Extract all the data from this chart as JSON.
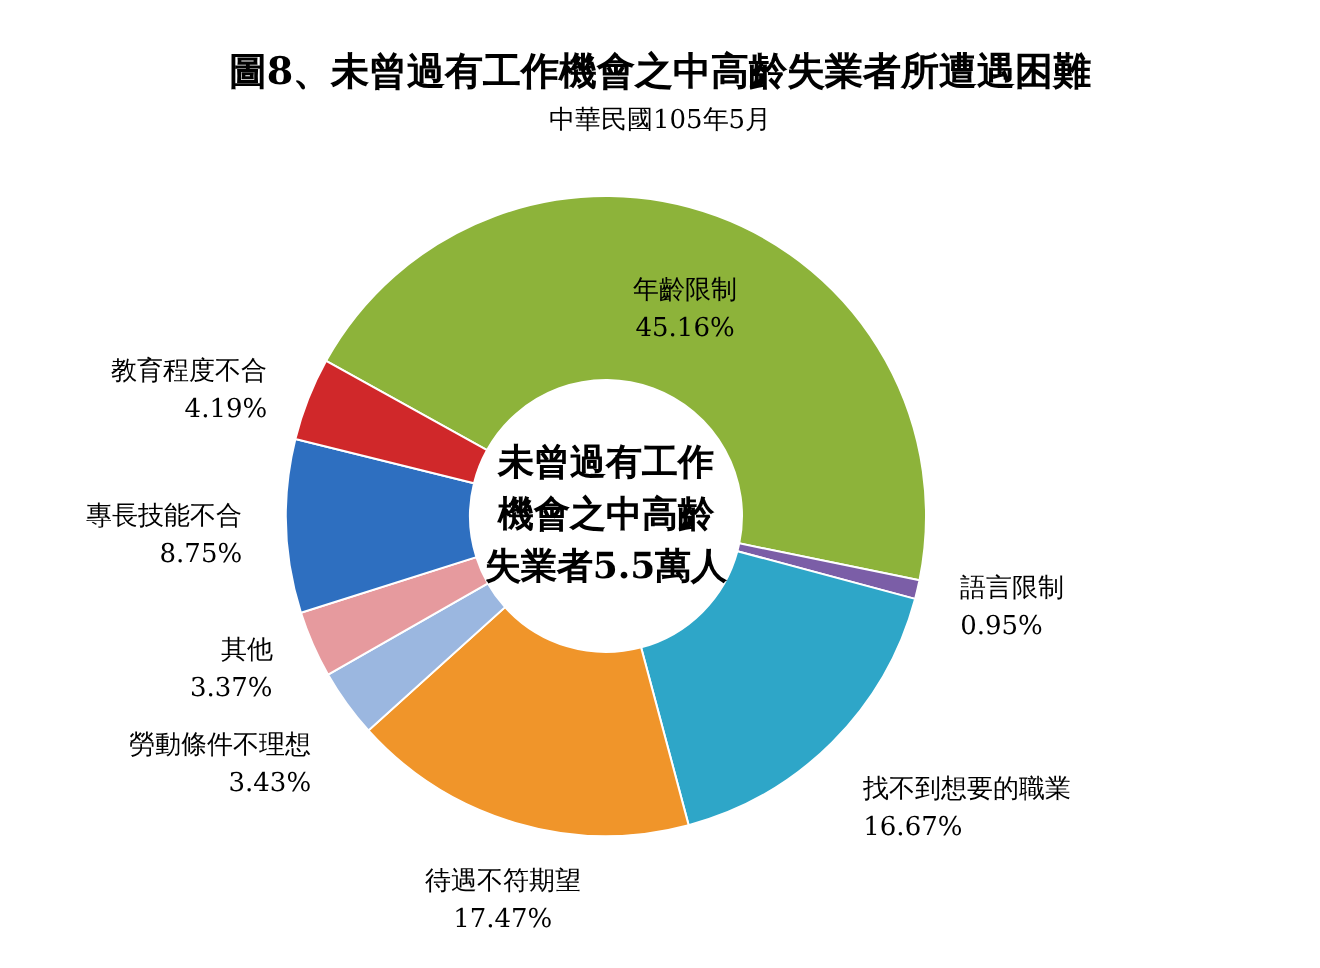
{
  "chart_data": {
    "type": "donut",
    "title": "圖8、未曾過有工作機會之中高齡失業者所遭遇困難",
    "subtitle": "中華民國105年5月",
    "categories": [
      "年齡限制",
      "語言限制",
      "找不到想要的職業",
      "待遇不符期望",
      "勞動條件不理想",
      "其他",
      "專長技能不合",
      "教育程度不合"
    ],
    "values": [
      45.16,
      0.95,
      16.67,
      17.47,
      3.43,
      3.37,
      8.75,
      4.19
    ],
    "colors": [
      "#8db33a",
      "#7b5ea7",
      "#2ea6c8",
      "#f0952a",
      "#9bb7e0",
      "#e69a9e",
      "#2e6fc0",
      "#d0282a"
    ],
    "value_labels": [
      "45.16%",
      "0.95%",
      "16.67%",
      "17.47%",
      "3.43%",
      "3.37%",
      "8.75%",
      "4.19%"
    ],
    "annotations": [
      "未曾過有工作機會之中高齡失業者5.5萬人"
    ]
  }
}
